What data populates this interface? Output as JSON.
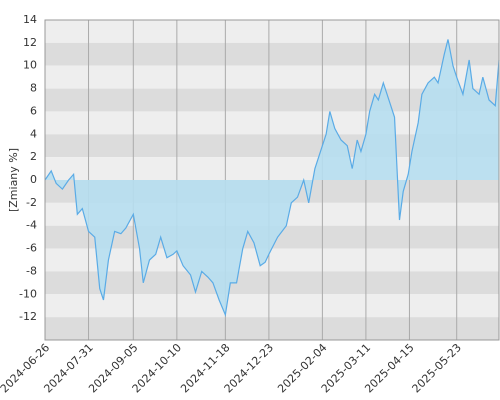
{
  "chart_data": {
    "type": "area",
    "y_label": "[Zmiany %]",
    "x": [
      "2024-06-26",
      "2024-07-01",
      "2024-07-05",
      "2024-07-10",
      "2024-07-15",
      "2024-07-19",
      "2024-07-22",
      "2024-07-26",
      "2024-07-31",
      "2024-08-05",
      "2024-08-09",
      "2024-08-12",
      "2024-08-16",
      "2024-08-21",
      "2024-08-26",
      "2024-08-30",
      "2024-09-05",
      "2024-09-10",
      "2024-09-13",
      "2024-09-18",
      "2024-09-23",
      "2024-09-27",
      "2024-10-02",
      "2024-10-07",
      "2024-10-10",
      "2024-10-15",
      "2024-10-21",
      "2024-10-25",
      "2024-10-30",
      "2024-11-04",
      "2024-11-08",
      "2024-11-13",
      "2024-11-18",
      "2024-11-22",
      "2024-11-27",
      "2024-12-02",
      "2024-12-06",
      "2024-12-11",
      "2024-12-16",
      "2024-12-20",
      "2024-12-23",
      "2024-12-30",
      "2025-01-06",
      "2025-01-10",
      "2025-01-15",
      "2025-01-20",
      "2025-01-24",
      "2025-01-29",
      "2025-02-04",
      "2025-02-07",
      "2025-02-10",
      "2025-02-14",
      "2025-02-19",
      "2025-02-24",
      "2025-02-28",
      "2025-03-04",
      "2025-03-07",
      "2025-03-11",
      "2025-03-14",
      "2025-03-18",
      "2025-03-21",
      "2025-03-25",
      "2025-03-31",
      "2025-04-03",
      "2025-04-07",
      "2025-04-10",
      "2025-04-14",
      "2025-04-17",
      "2025-04-22",
      "2025-04-25",
      "2025-04-30",
      "2025-05-05",
      "2025-05-08",
      "2025-05-13",
      "2025-05-16",
      "2025-05-20",
      "2025-05-23",
      "2025-05-28",
      "2025-06-02",
      "2025-06-05",
      "2025-06-10",
      "2025-06-13",
      "2025-06-18",
      "2025-06-23",
      "2025-06-26"
    ],
    "series": [
      {
        "name": "Zmiany",
        "color": "#5aabe6",
        "fill": "#b6def0",
        "values": [
          0,
          0.8,
          -0.3,
          -0.8,
          0,
          0.5,
          -3,
          -2.5,
          -4.5,
          -5,
          -9.5,
          -10.5,
          -7,
          -4.5,
          -4.7,
          -4.2,
          -3,
          -6,
          -9,
          -7,
          -6.5,
          -5,
          -6.8,
          -6.5,
          -6.2,
          -7.5,
          -8.3,
          -9.8,
          -8,
          -8.5,
          -9,
          -10.5,
          -11.8,
          -9,
          -9,
          -6,
          -4.5,
          -5.5,
          -7.5,
          -7.2,
          -6.5,
          -5,
          -4,
          -2,
          -1.5,
          0,
          -2,
          1,
          3,
          4,
          6,
          4.5,
          3.5,
          3,
          1,
          3.5,
          2.5,
          4,
          6,
          7.5,
          7,
          8.5,
          6.5,
          5.5,
          -3.5,
          -1,
          0.5,
          2.5,
          5,
          7.5,
          8.5,
          9,
          8.5,
          11,
          12.3,
          10,
          9,
          7.5,
          10.5,
          8,
          7.5,
          9,
          7,
          6.5,
          10.5
        ]
      }
    ],
    "xlim": [
      "2024-06-26",
      "2025-06-26"
    ],
    "xticks": [
      "2024-06-26",
      "2024-07-31",
      "2024-09-05",
      "2024-10-10",
      "2024-11-18",
      "2024-12-23",
      "2025-02-04",
      "2025-03-11",
      "2025-04-15",
      "2025-05-23"
    ],
    "ylim": [
      -14,
      14
    ],
    "yticks": [
      -12,
      -10,
      -8,
      -6,
      -4,
      -2,
      0,
      2,
      4,
      6,
      8,
      10,
      12,
      14
    ],
    "grid": true
  }
}
